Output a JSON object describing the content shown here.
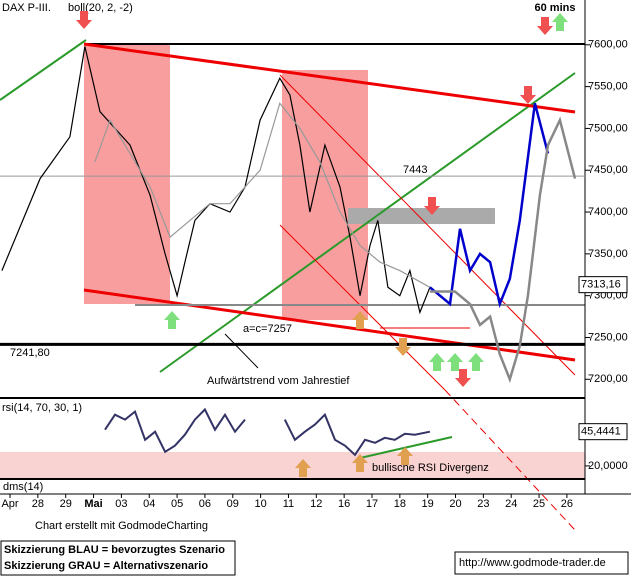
{
  "chart_data": [
    {
      "type": "line",
      "title": "DAX P-III.",
      "subtitle": "60 mins",
      "xlim": [
        -0.36,
        20.65
      ],
      "ylim": [
        7180,
        7650
      ],
      "yticks": [
        {
          "value": 7200,
          "label": "7200,00"
        },
        {
          "value": 7250,
          "label": "7250,00"
        },
        {
          "value": 7300,
          "label": "7300,00"
        },
        {
          "value": 7350,
          "label": "7350,00"
        },
        {
          "value": 7400,
          "label": "7400,00"
        },
        {
          "value": 7450,
          "label": "7450,00"
        },
        {
          "value": 7500,
          "label": "7500,00"
        },
        {
          "value": 7550,
          "label": "7550,00"
        },
        {
          "value": 7600,
          "label": "7600,00"
        }
      ],
      "categories": [
        "Apr",
        "28",
        "29",
        "Mai",
        "03",
        "04",
        "05",
        "06",
        "09",
        "10",
        "11",
        "12",
        "16",
        "17",
        "18",
        "19",
        "20",
        "23",
        "24",
        "25",
        "26"
      ],
      "series": [
        {
          "color": "#000000",
          "x": [
            -0.29,
            1.08,
            2.15,
            2.69,
            3.23,
            3.77,
            4.31,
            5.03,
            5.57,
            6.0,
            6.28,
            6.64,
            7.18,
            7.9,
            8.44,
            8.98,
            9.69,
            10.05,
            10.41,
            10.77,
            11.31,
            11.85,
            12.21,
            12.57,
            12.93,
            13.21,
            13.57,
            14.0,
            14.36,
            14.72,
            15.08
          ],
          "values": [
            7330,
            7440,
            7490,
            7598,
            7520,
            7500,
            7480,
            7420,
            7350,
            7300,
            7340,
            7390,
            7410,
            7400,
            7430,
            7510,
            7560,
            7540,
            7480,
            7400,
            7480,
            7430,
            7370,
            7300,
            7360,
            7390,
            7310,
            7300,
            7330,
            7280,
            7310
          ]
        },
        {
          "name": "boll(20, 2, -2)",
          "color": "#999999",
          "x": [
            3.05,
            3.59,
            4.31,
            5.03,
            5.75,
            6.46,
            7.18,
            7.9,
            8.98,
            9.69,
            10.41,
            11.13,
            11.85,
            12.57,
            13.29,
            14.0,
            15.08
          ],
          "values": [
            7460,
            7510,
            7470,
            7430,
            7370,
            7390,
            7410,
            7410,
            7450,
            7530,
            7500,
            7460,
            7400,
            7360,
            7340,
            7330,
            7310
          ]
        },
        {
          "name": "Skizzierung BLAU = bevorzugtes Szenario",
          "color": "#0000cc",
          "x": [
            15.08,
            15.8,
            16.16,
            16.52,
            16.88,
            17.24,
            17.59,
            17.95,
            18.31,
            18.85,
            19.32
          ],
          "values": [
            7310,
            7290,
            7380,
            7330,
            7350,
            7340,
            7290,
            7320,
            7390,
            7530,
            7470
          ]
        },
        {
          "name": "Skizzierung GRAU = Alternativszenario",
          "color": "#888888",
          "x": [
            15.08,
            15.98,
            16.52,
            16.88,
            17.24,
            17.59,
            17.95,
            18.31,
            18.6,
            19.03,
            19.32,
            19.75,
            20.29
          ],
          "values": [
            7305,
            7305,
            7290,
            7265,
            7275,
            7230,
            7200,
            7240,
            7300,
            7420,
            7480,
            7510,
            7440
          ]
        }
      ],
      "levels": [
        7443,
        {
          "value": 7241.8,
          "label": "7241,80"
        }
      ],
      "last_price": {
        "value": 7313.16,
        "label": "7313,16"
      },
      "annotations": [
        "a=c=7257",
        "Aufwärtstrend vom Jahrestief"
      ],
      "indicator_label": "dms(14)",
      "footer": "Chart erstellt mit GodmodeCharting",
      "url": "http://www.godmode-trader.de"
    },
    {
      "type": "line",
      "title": "rsi(14, 70, 30, 1)",
      "ylim": [
        11,
        69
      ],
      "yticks": [
        {
          "value": 20,
          "label": "20,0000"
        }
      ],
      "series": [
        {
          "color": "#333366",
          "x": [
            3.41,
            3.77,
            4.13,
            4.49,
            4.85,
            5.21,
            5.57,
            5.92,
            6.28,
            6.64,
            7.0,
            7.36,
            7.72,
            8.08,
            8.44,
            null,
            9.87,
            10.23,
            10.59,
            10.95,
            11.31,
            11.67,
            12.03,
            12.39,
            12.75,
            13.11,
            13.46,
            13.82,
            14.18,
            14.54,
            15.08
          ],
          "values": [
            46.9,
            58.1,
            54.4,
            60.4,
            39.4,
            45.4,
            30.5,
            35.0,
            43.2,
            54.4,
            61.9,
            46.9,
            58.1,
            45.4,
            54.4,
            null,
            54.4,
            39.4,
            45.4,
            50.7,
            58.1,
            39.4,
            35.0,
            28.2,
            39.4,
            37.2,
            40.9,
            39.4,
            43.9,
            43.2,
            45.4441
          ]
        }
      ],
      "last_label": {
        "value": 45.4441,
        "label": "45,4441"
      },
      "annotations": [
        "bullische RSI Divergenz"
      ]
    }
  ]
}
